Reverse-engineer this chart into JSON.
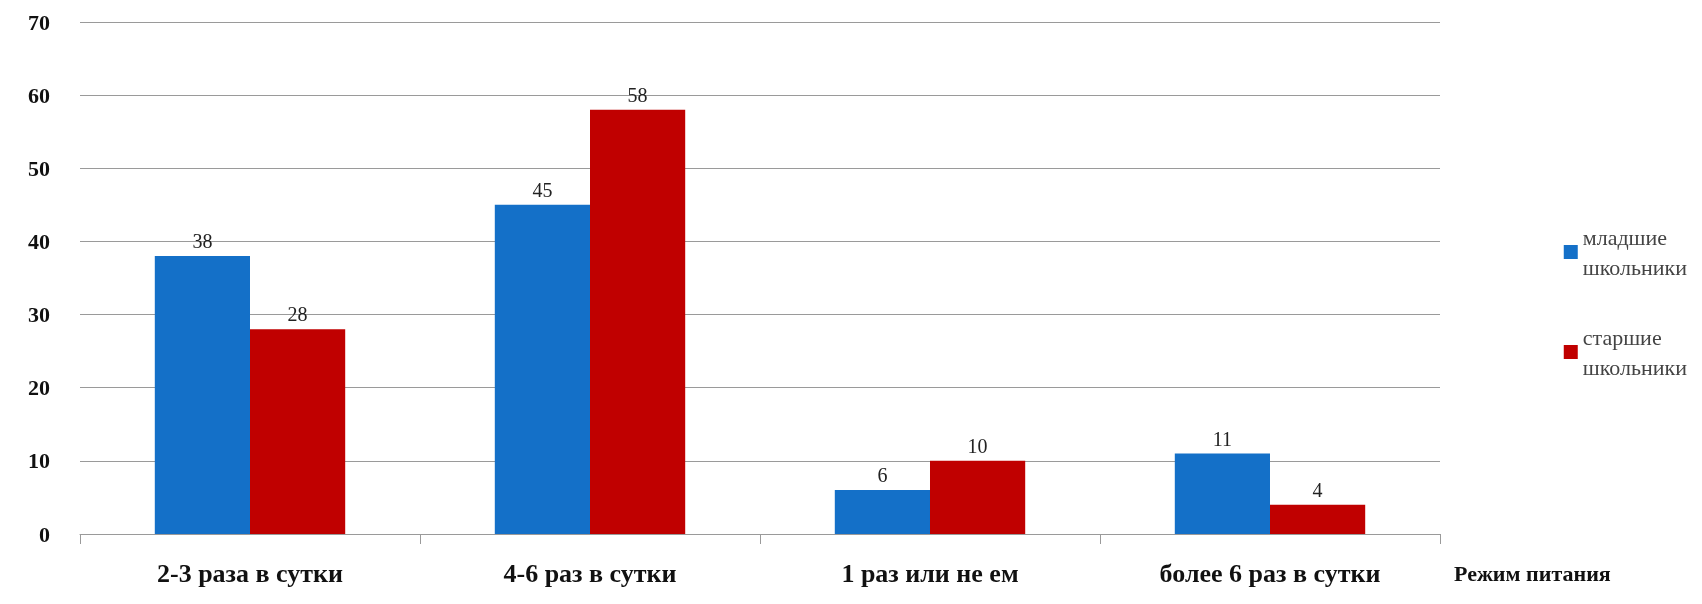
{
  "chart_data": {
    "type": "bar",
    "xlabel": "Режим питания",
    "categories": [
      "2-3 раза в сутки",
      "4-6 раз в сутки",
      "1 раз или не ем",
      "более 6 раз в сутки"
    ],
    "series": [
      {
        "name": "младшие школьники",
        "color": "#1470c8",
        "values": [
          38,
          45,
          6,
          11
        ]
      },
      {
        "name": "старшие школьники",
        "color": "#c00000",
        "values": [
          28,
          58,
          10,
          4
        ]
      }
    ],
    "ylim": [
      0,
      70
    ],
    "yticks": [
      0,
      10,
      20,
      30,
      40,
      50,
      60,
      70
    ],
    "grid": "y",
    "legend": "right",
    "data_labels": true
  }
}
